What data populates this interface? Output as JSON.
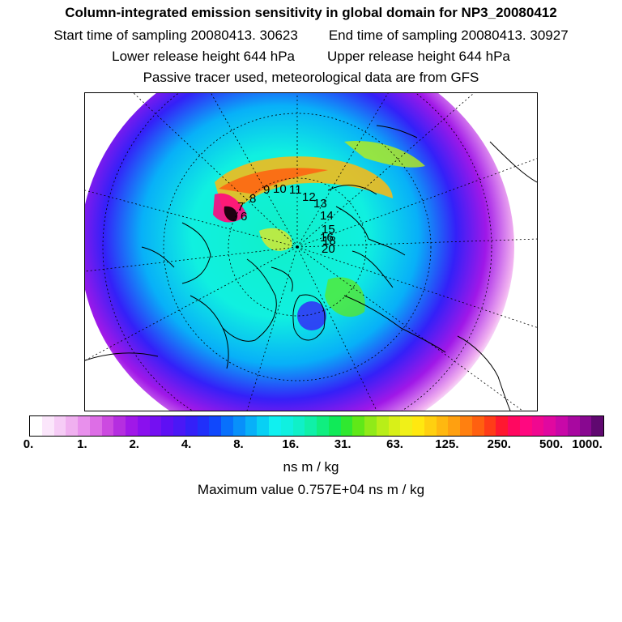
{
  "header": {
    "title": "Column-integrated emission sensitivity in global domain for NP3_20080412",
    "start_label": "Start time of sampling 20080413. 30623",
    "end_label": "End time of sampling 20080413. 30927",
    "lower_label": "Lower release height  644 hPa",
    "upper_label": "Upper release height  644 hPa",
    "tracer_label": "Passive tracer used, meteorological data are from GFS"
  },
  "map": {
    "projection": "polar-stereographic-north",
    "trajectory_markers": [
      "6",
      "7",
      "8",
      "9",
      "10",
      "11",
      "12",
      "13",
      "14",
      "15",
      "16",
      "18",
      "20"
    ]
  },
  "colorbar": {
    "tick_labels": [
      "0.",
      "1.",
      "2.",
      "4.",
      "8.",
      "16.",
      "31.",
      "63.",
      "125.",
      "250.",
      "500.",
      "1000."
    ],
    "colors": [
      "#ffffff",
      "#fbe6fb",
      "#f6ccf6",
      "#f0b0f0",
      "#e890ec",
      "#dd6ee6",
      "#cc4ae0",
      "#b52ee0",
      "#a018e8",
      "#8a10ee",
      "#7410f2",
      "#5e10f4",
      "#4a18f6",
      "#3420f8",
      "#2030fa",
      "#1048fc",
      "#0870fc",
      "#0890fa",
      "#08b0f8",
      "#08d0f4",
      "#10f0f0",
      "#10f0e0",
      "#10f0c8",
      "#10f0a8",
      "#10ee80",
      "#10ea58",
      "#30e830",
      "#60e818",
      "#90ea18",
      "#b8ee18",
      "#d8f018",
      "#f0f018",
      "#ffe810",
      "#ffd010",
      "#ffb810",
      "#ffa010",
      "#ff8010",
      "#ff6010",
      "#ff3c18",
      "#ff1830",
      "#ff0860",
      "#ff0880",
      "#f00890",
      "#e008a0",
      "#c808a8",
      "#a808a0",
      "#880890",
      "#600870"
    ],
    "unit_label": "ns m / kg",
    "max_label": "Maximum value  0.757E+04 ns m / kg"
  }
}
